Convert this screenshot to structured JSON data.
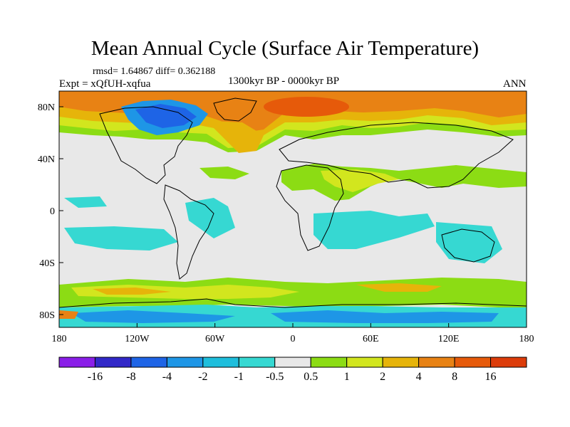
{
  "title": "Mean Annual Cycle (Surface Air Temperature)",
  "stats": "rmsd= 1.64867 diff= 0.362188",
  "experiment": "Expt = xQfUH-xqfua",
  "period": "1300kyr BP - 0000kyr BP",
  "season": "ANN",
  "axes": {
    "x_ticks": [
      "180",
      "120W",
      "60W",
      "0",
      "60E",
      "120E",
      "180"
    ],
    "y_ticks": [
      "80N",
      "40N",
      "0",
      "40S",
      "80S"
    ]
  },
  "colorbar": {
    "labels": [
      "-16",
      "-8",
      "-4",
      "-2",
      "-1",
      "-0.5",
      "0.5",
      "1",
      "2",
      "4",
      "8",
      "16"
    ],
    "colors": [
      "#8a1ee8",
      "#3228c8",
      "#1e64e6",
      "#1e96e6",
      "#1ebedc",
      "#36d8d2",
      "#e8e8e8",
      "#8cdc14",
      "#d2e61e",
      "#e6b40a",
      "#e88214",
      "#e65a0a",
      "#dc3c0a"
    ]
  },
  "colors": {
    "land_outline": "#000000",
    "neutral": "#e8e8e8"
  }
}
